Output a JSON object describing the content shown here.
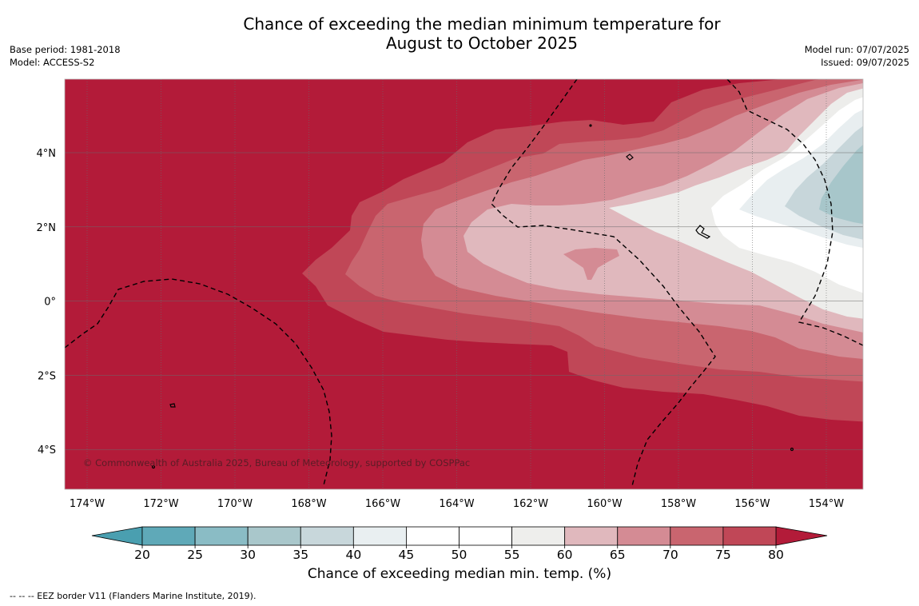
{
  "title": {
    "line1": "Chance of exceeding the median minimum temperature for",
    "line2": "August to October 2025"
  },
  "meta_left": {
    "base_period": "Base period: 1981-2018",
    "model": "Model: ACCESS-S2"
  },
  "meta_right": {
    "model_run": "Model run: 07/07/2025",
    "issued": "Issued: 09/07/2025"
  },
  "map": {
    "lon_ticks": [
      "174°W",
      "172°W",
      "170°W",
      "168°W",
      "166°W",
      "164°W",
      "162°W",
      "160°W",
      "158°W",
      "156°W",
      "154°W"
    ],
    "lat_ticks": [
      "4°N",
      "2°N",
      "0°",
      "2°S",
      "4°S"
    ],
    "copyright": "© Commonwealth of Australia 2025, Bureau of Meteorology, supported by COSPPac",
    "colors": {
      "c80": "#b31b39",
      "c75": "#c04757",
      "c70": "#c9656f",
      "c65": "#d48b94",
      "c60": "#e0b8bd",
      "c55": "#ededeb",
      "c50": "#ffffff",
      "c40": "#e8eef0",
      "c35": "#c7d6da",
      "c30": "#a7c6ca"
    }
  },
  "colorbar": {
    "ticks": [
      "20",
      "25",
      "30",
      "35",
      "40",
      "45",
      "50",
      "55",
      "60",
      "65",
      "70",
      "75",
      "80"
    ],
    "colors": [
      "#5fa9b8",
      "#8abcc5",
      "#a9c7cb",
      "#c8d7db",
      "#e9eff1",
      "#ffffff",
      "#ffffff",
      "#eeeeec",
      "#e0b8bd",
      "#d48b94",
      "#c9656f",
      "#c04757"
    ],
    "under_color": "#4a9fb0",
    "over_color": "#b31b39",
    "label": "Chance of exceeding median min. temp. (%)"
  },
  "footnote": "--  --  -- EEZ border V11 (Flanders Marine Institute, 2019)."
}
